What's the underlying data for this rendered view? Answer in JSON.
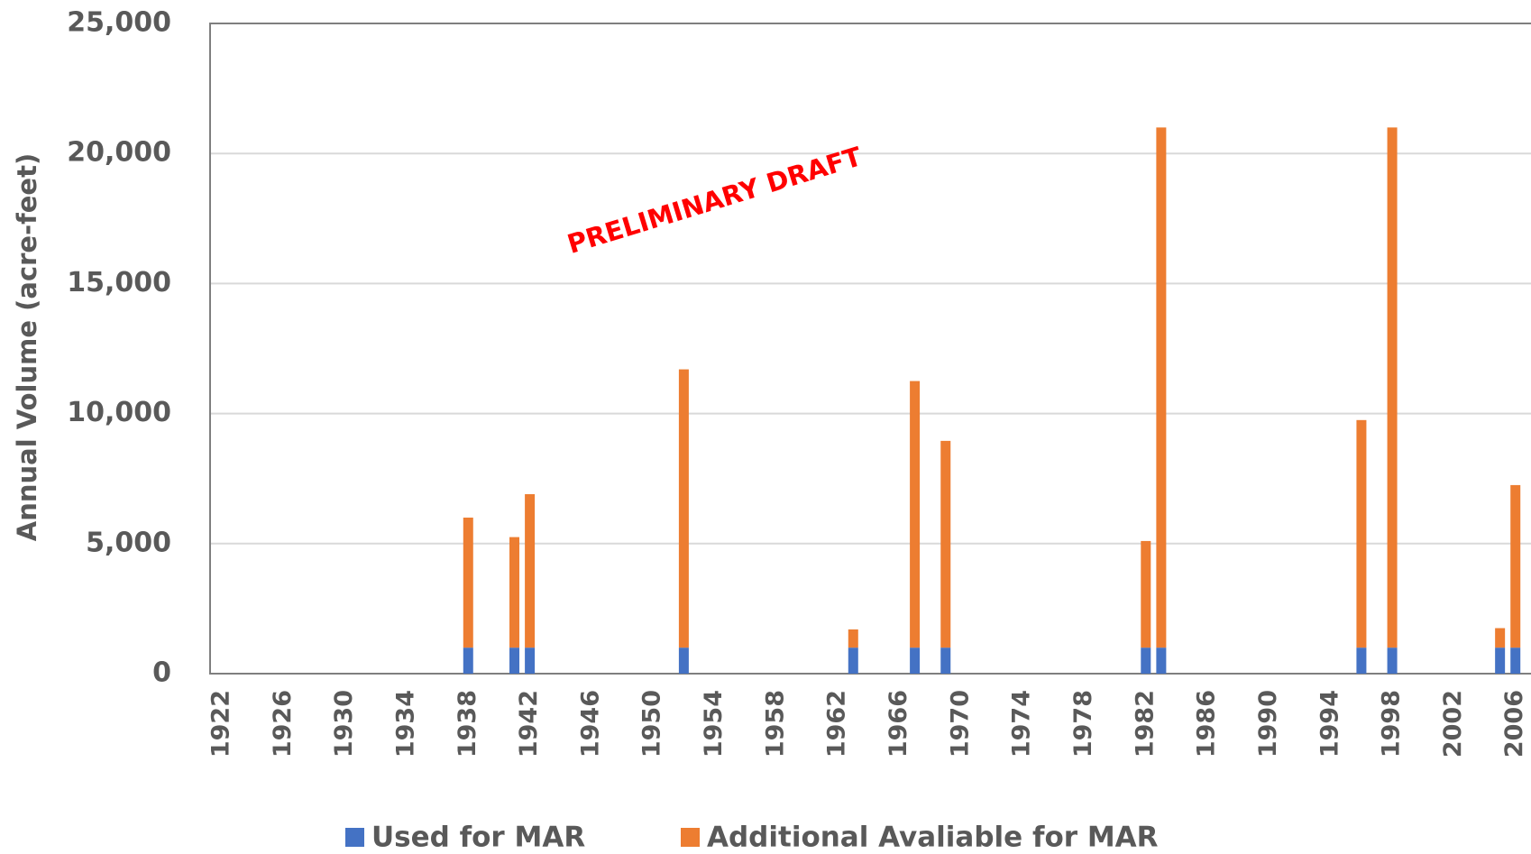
{
  "chart_data": {
    "type": "stacked_bar",
    "watermark": "PRELIMINARY DRAFT",
    "y_label": "Annual Volume (acre-feet)",
    "categories": [
      "1922",
      null,
      null,
      null,
      "1926",
      null,
      null,
      null,
      "1930",
      null,
      null,
      null,
      "1934",
      null,
      null,
      null,
      "1938",
      null,
      null,
      null,
      "1942",
      null,
      null,
      null,
      "1946",
      null,
      null,
      null,
      "1950",
      null,
      null,
      null,
      "1954",
      null,
      null,
      null,
      "1958",
      null,
      null,
      null,
      "1962",
      null,
      null,
      null,
      "1966",
      null,
      null,
      null,
      "1970",
      null,
      null,
      null,
      "1974",
      null,
      null,
      null,
      "1978",
      null,
      null,
      null,
      "1982",
      null,
      null,
      null,
      "1986",
      null,
      null,
      null,
      "1990",
      null,
      null,
      null,
      "1994",
      null,
      null,
      null,
      "1998",
      null,
      null,
      null,
      "2002",
      null,
      null,
      null,
      "2006"
    ],
    "series": [
      {
        "name": "Used for MAR",
        "color": "#4472c4",
        "values": [
          0,
          0,
          0,
          0,
          0,
          0,
          0,
          0,
          0,
          0,
          0,
          0,
          0,
          0,
          0,
          0,
          1000,
          0,
          0,
          1000,
          1000,
          0,
          0,
          0,
          0,
          0,
          0,
          0,
          0,
          0,
          1000,
          0,
          0,
          0,
          0,
          0,
          0,
          0,
          0,
          0,
          0,
          1000,
          0,
          0,
          0,
          1000,
          0,
          1000,
          0,
          0,
          0,
          0,
          0,
          0,
          0,
          0,
          0,
          0,
          0,
          0,
          1000,
          1000,
          0,
          0,
          0,
          0,
          0,
          0,
          0,
          0,
          0,
          0,
          0,
          0,
          1000,
          0,
          1000,
          0,
          0,
          0,
          0,
          0,
          0,
          1000,
          1000
        ]
      },
      {
        "name": "Additional Avaliable for MAR",
        "color": "#ed7d31",
        "values": [
          0,
          0,
          0,
          0,
          0,
          0,
          0,
          0,
          0,
          0,
          0,
          0,
          0,
          0,
          0,
          0,
          5000,
          0,
          0,
          4250,
          5900,
          0,
          0,
          0,
          0,
          0,
          0,
          0,
          0,
          0,
          10700,
          0,
          0,
          0,
          0,
          0,
          0,
          0,
          0,
          0,
          0,
          700,
          0,
          0,
          0,
          10250,
          0,
          7950,
          0,
          0,
          0,
          0,
          0,
          0,
          0,
          0,
          0,
          0,
          0,
          0,
          4100,
          20000,
          0,
          0,
          0,
          0,
          0,
          0,
          0,
          0,
          0,
          0,
          0,
          0,
          8750,
          0,
          20000,
          0,
          0,
          0,
          0,
          0,
          0,
          750,
          6250
        ]
      }
    ],
    "ylim": [
      0,
      25000
    ],
    "yticks": [
      0,
      {
        "value": 5000,
        "label": "5,000"
      },
      {
        "value": 10000,
        "label": "10,000"
      },
      {
        "value": 15000,
        "label": "15,000"
      },
      {
        "value": 20000,
        "label": "20,000"
      },
      {
        "value": 25000,
        "label": "25,000"
      }
    ],
    "grid": true,
    "legend": "bottom"
  }
}
